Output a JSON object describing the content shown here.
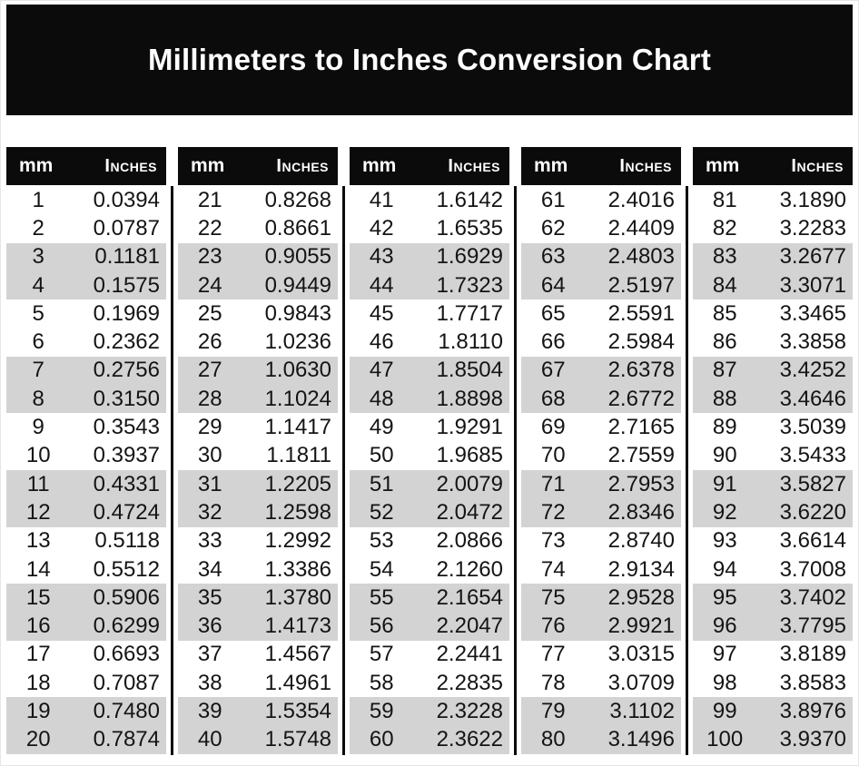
{
  "page": {
    "title": "Millimeters to Inches Conversion Chart"
  },
  "table_labels": {
    "mm": "mm",
    "inches": "Inches"
  },
  "colors": {
    "banner_bg": "#0b0b0b",
    "header_bg": "#0b0b0b",
    "row_shade": "#d3d3d3",
    "title_text": "#ffffff",
    "body_text": "#141414"
  },
  "chart_data": {
    "type": "table",
    "title": "Millimeters to Inches Conversion Chart",
    "columns": [
      "mm",
      "Inches"
    ],
    "groups": 5,
    "rows_per_group": 20,
    "shading": "alternating pairs of rows (2 white, 2 gray)",
    "rows": [
      [
        "1",
        "0.0394"
      ],
      [
        "2",
        "0.0787"
      ],
      [
        "3",
        "0.1181"
      ],
      [
        "4",
        "0.1575"
      ],
      [
        "5",
        "0.1969"
      ],
      [
        "6",
        "0.2362"
      ],
      [
        "7",
        "0.2756"
      ],
      [
        "8",
        "0.3150"
      ],
      [
        "9",
        "0.3543"
      ],
      [
        "10",
        "0.3937"
      ],
      [
        "11",
        "0.4331"
      ],
      [
        "12",
        "0.4724"
      ],
      [
        "13",
        "0.5118"
      ],
      [
        "14",
        "0.5512"
      ],
      [
        "15",
        "0.5906"
      ],
      [
        "16",
        "0.6299"
      ],
      [
        "17",
        "0.6693"
      ],
      [
        "18",
        "0.7087"
      ],
      [
        "19",
        "0.7480"
      ],
      [
        "20",
        "0.7874"
      ],
      [
        "21",
        "0.8268"
      ],
      [
        "22",
        "0.8661"
      ],
      [
        "23",
        "0.9055"
      ],
      [
        "24",
        "0.9449"
      ],
      [
        "25",
        "0.9843"
      ],
      [
        "26",
        "1.0236"
      ],
      [
        "27",
        "1.0630"
      ],
      [
        "28",
        "1.1024"
      ],
      [
        "29",
        "1.1417"
      ],
      [
        "30",
        "1.1811"
      ],
      [
        "31",
        "1.2205"
      ],
      [
        "32",
        "1.2598"
      ],
      [
        "33",
        "1.2992"
      ],
      [
        "34",
        "1.3386"
      ],
      [
        "35",
        "1.3780"
      ],
      [
        "36",
        "1.4173"
      ],
      [
        "37",
        "1.4567"
      ],
      [
        "38",
        "1.4961"
      ],
      [
        "39",
        "1.5354"
      ],
      [
        "40",
        "1.5748"
      ],
      [
        "41",
        "1.6142"
      ],
      [
        "42",
        "1.6535"
      ],
      [
        "43",
        "1.6929"
      ],
      [
        "44",
        "1.7323"
      ],
      [
        "45",
        "1.7717"
      ],
      [
        "46",
        "1.8110"
      ],
      [
        "47",
        "1.8504"
      ],
      [
        "48",
        "1.8898"
      ],
      [
        "49",
        "1.9291"
      ],
      [
        "50",
        "1.9685"
      ],
      [
        "51",
        "2.0079"
      ],
      [
        "52",
        "2.0472"
      ],
      [
        "53",
        "2.0866"
      ],
      [
        "54",
        "2.1260"
      ],
      [
        "55",
        "2.1654"
      ],
      [
        "56",
        "2.2047"
      ],
      [
        "57",
        "2.2441"
      ],
      [
        "58",
        "2.2835"
      ],
      [
        "59",
        "2.3228"
      ],
      [
        "60",
        "2.3622"
      ],
      [
        "61",
        "2.4016"
      ],
      [
        "62",
        "2.4409"
      ],
      [
        "63",
        "2.4803"
      ],
      [
        "64",
        "2.5197"
      ],
      [
        "65",
        "2.5591"
      ],
      [
        "66",
        "2.5984"
      ],
      [
        "67",
        "2.6378"
      ],
      [
        "68",
        "2.6772"
      ],
      [
        "69",
        "2.7165"
      ],
      [
        "70",
        "2.7559"
      ],
      [
        "71",
        "2.7953"
      ],
      [
        "72",
        "2.8346"
      ],
      [
        "73",
        "2.8740"
      ],
      [
        "74",
        "2.9134"
      ],
      [
        "75",
        "2.9528"
      ],
      [
        "76",
        "2.9921"
      ],
      [
        "77",
        "3.0315"
      ],
      [
        "78",
        "3.0709"
      ],
      [
        "79",
        "3.1102"
      ],
      [
        "80",
        "3.1496"
      ],
      [
        "81",
        "3.1890"
      ],
      [
        "82",
        "3.2283"
      ],
      [
        "83",
        "3.2677"
      ],
      [
        "84",
        "3.3071"
      ],
      [
        "85",
        "3.3465"
      ],
      [
        "86",
        "3.3858"
      ],
      [
        "87",
        "3.4252"
      ],
      [
        "88",
        "3.4646"
      ],
      [
        "89",
        "3.5039"
      ],
      [
        "90",
        "3.5433"
      ],
      [
        "91",
        "3.5827"
      ],
      [
        "92",
        "3.6220"
      ],
      [
        "93",
        "3.6614"
      ],
      [
        "94",
        "3.7008"
      ],
      [
        "95",
        "3.7402"
      ],
      [
        "96",
        "3.7795"
      ],
      [
        "97",
        "3.8189"
      ],
      [
        "98",
        "3.8583"
      ],
      [
        "99",
        "3.8976"
      ],
      [
        "100",
        "3.9370"
      ]
    ]
  }
}
